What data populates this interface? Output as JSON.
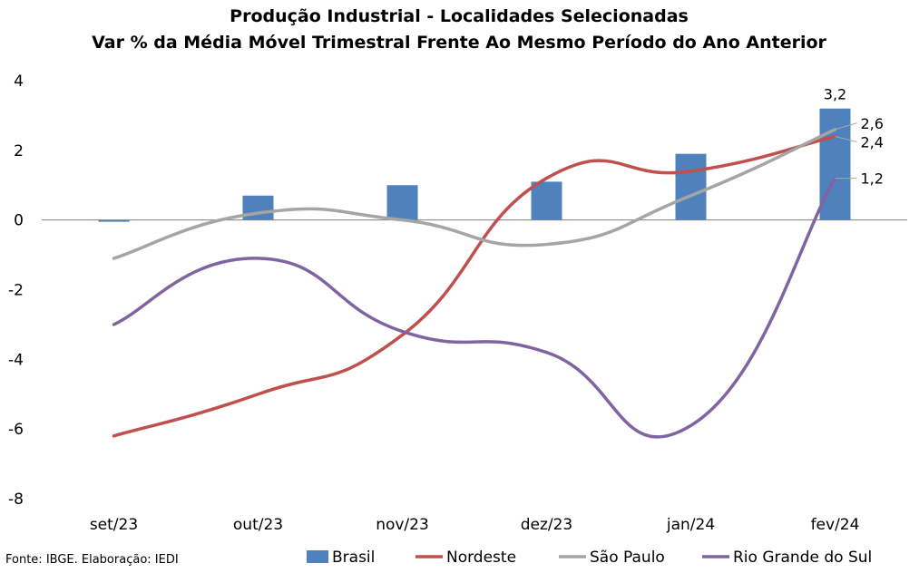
{
  "chart_data": {
    "type": "bar",
    "title": "Produção Industrial - Localidades Selecionadas",
    "subtitle": "Var % da Média Móvel Trimestral Frente Ao Mesmo Período do Ano Anterior",
    "categories": [
      "set/23",
      "out/23",
      "nov/23",
      "dez/23",
      "jan/24",
      "fev/24"
    ],
    "ylim": [
      -8,
      4
    ],
    "yticks": [
      4,
      2,
      0,
      -2,
      -4,
      -6,
      -8
    ],
    "grid": false,
    "legend_position": "bottom",
    "series": [
      {
        "name": "Brasil",
        "type": "bar",
        "color": "#4f81bd",
        "values": [
          -0.05,
          0.7,
          1.0,
          1.1,
          1.9,
          3.2
        ]
      },
      {
        "name": "Nordeste",
        "type": "line",
        "color": "#c0504d",
        "values": [
          -6.2,
          -5.0,
          -3.3,
          1.2,
          1.4,
          2.4
        ]
      },
      {
        "name": "São Paulo",
        "type": "line",
        "color": "#a5a5a5",
        "values": [
          -1.1,
          0.2,
          0.0,
          -0.7,
          0.7,
          2.6
        ]
      },
      {
        "name": "Rio Grande do Sul",
        "type": "line",
        "color": "#8064a2",
        "values": [
          -3.0,
          -1.1,
          -3.2,
          -3.8,
          -5.9,
          1.2
        ]
      }
    ],
    "data_labels": [
      {
        "series": "Brasil",
        "index": 5,
        "text": "3,2"
      },
      {
        "series": "São Paulo",
        "index": 5,
        "text": "2,6"
      },
      {
        "series": "Nordeste",
        "index": 5,
        "text": "2,4"
      },
      {
        "series": "Rio Grande do Sul",
        "index": 5,
        "text": "1,2"
      }
    ]
  },
  "source": "Fonte: IBGE. Elaboração: IEDI"
}
